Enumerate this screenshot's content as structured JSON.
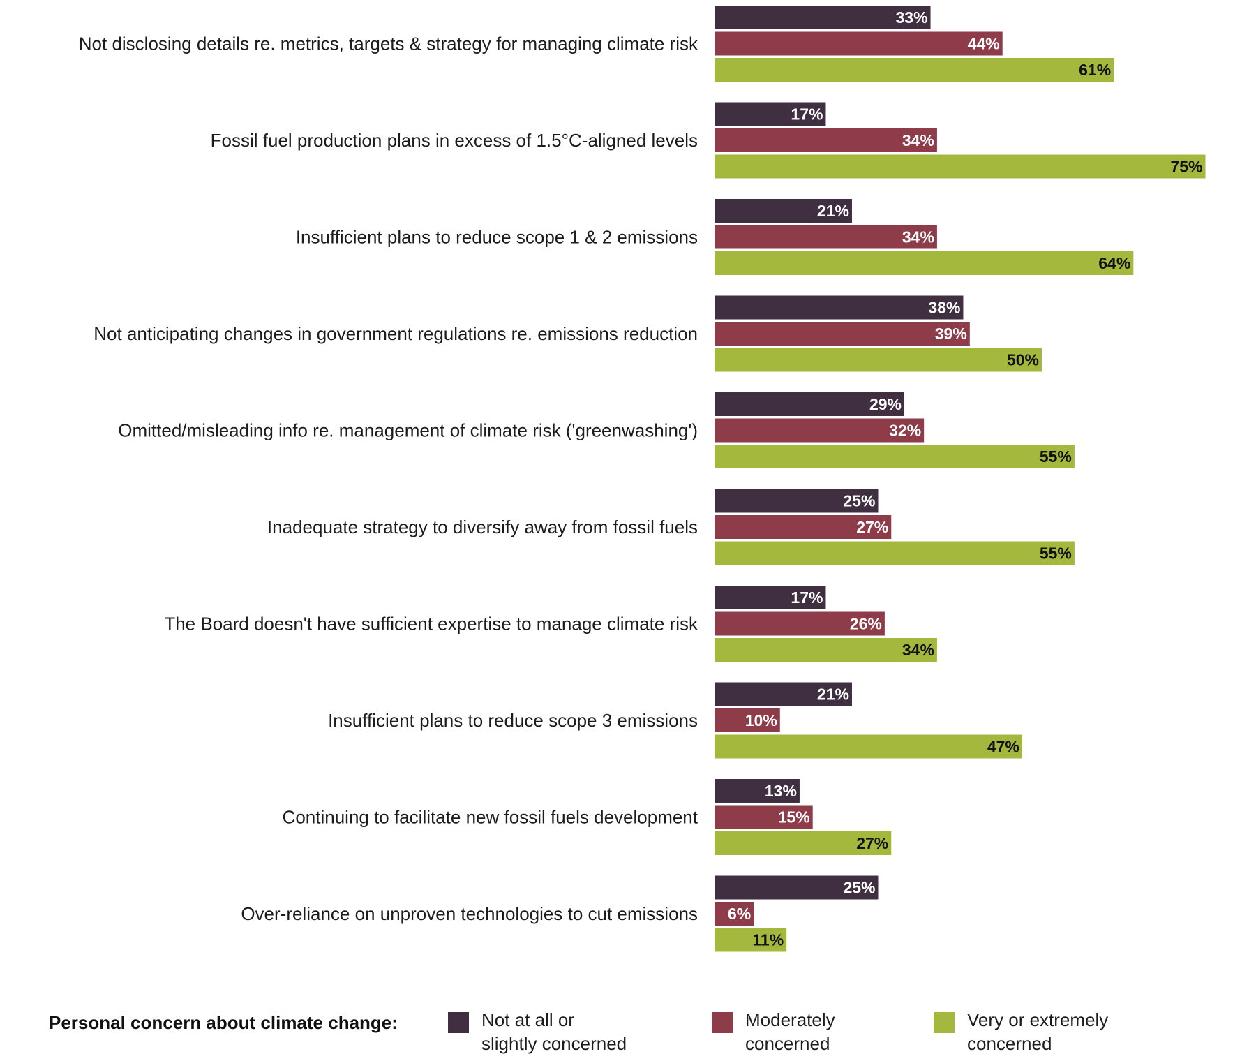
{
  "chart_data": {
    "type": "bar",
    "orientation": "horizontal",
    "categories": [
      "Not disclosing details re. metrics, targets & strategy for managing climate risk",
      "Fossil fuel production plans in excess of 1.5°C-aligned levels",
      "Insufficient plans to reduce scope 1 & 2 emissions",
      "Not anticipating changes in government regulations re. emissions reduction",
      "Omitted/misleading info re. management of climate risk ('greenwashing')",
      "Inadequate strategy to diversify away from fossil fuels",
      "The Board doesn't have sufficient expertise to manage climate risk",
      "Insufficient plans to reduce scope 3 emissions",
      "Continuing to facilitate new fossil fuels development",
      "Over-reliance on unproven technologies to cut emissions"
    ],
    "series": [
      {
        "name": "Not at all or slightly concerned",
        "color": "#3f2f40",
        "label_color": "#ffffff",
        "values": [
          33,
          17,
          21,
          38,
          29,
          25,
          17,
          21,
          13,
          25
        ],
        "labels": [
          "33%",
          "17%",
          "21%",
          "38%",
          "29%",
          "25%",
          "17%",
          "21%",
          "13%",
          "25%"
        ]
      },
      {
        "name": "Moderately concerned",
        "color": "#8e3b4a",
        "label_color": "#ffffff",
        "values": [
          44,
          34,
          34,
          39,
          32,
          27,
          26,
          10,
          15,
          6
        ],
        "labels": [
          "44%",
          "34%",
          "34%",
          "39%",
          "32%",
          "27%",
          "26%",
          "10%",
          "15%",
          "6%"
        ]
      },
      {
        "name": "Very or extremely concerned",
        "color": "#a3b83c",
        "label_color": "#111111",
        "values": [
          61,
          75,
          64,
          50,
          55,
          55,
          34,
          47,
          27,
          11
        ],
        "labels": [
          "61%",
          "75%",
          "64%",
          "50%",
          "55%",
          "55%",
          "34%",
          "47%",
          "27%",
          "11%"
        ]
      }
    ],
    "xlim": [
      0,
      100
    ],
    "grid": false,
    "legend_placement": "bottom",
    "legend_title": "Personal concern about climate change:"
  },
  "legend": {
    "title": "Personal concern about climate change:",
    "items": [
      {
        "line1": "Not at all or",
        "line2": "slightly concerned",
        "color": "#3f2f40"
      },
      {
        "line1": "Moderately",
        "line2": "concerned",
        "color": "#8e3b4a"
      },
      {
        "line1": "Very or extremely",
        "line2": "concerned",
        "color": "#a3b83c"
      }
    ]
  }
}
